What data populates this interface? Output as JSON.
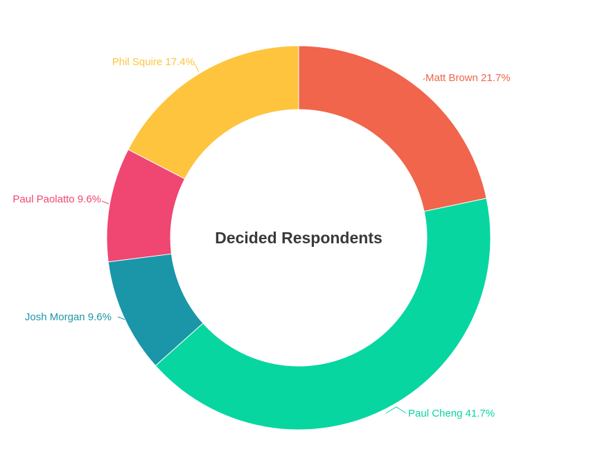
{
  "chart_data": {
    "type": "pie",
    "title": "Decided Respondents",
    "donut": true,
    "slices": [
      {
        "label": "Matt Brown",
        "value": 21.7,
        "display": "21.7%",
        "color": "#f0654b"
      },
      {
        "label": "Paul Cheng",
        "value": 41.7,
        "display": "41.7%",
        "color": "#08d6a0"
      },
      {
        "label": "Josh Morgan",
        "value": 9.6,
        "display": "9.6%",
        "color": "#1b96a8"
      },
      {
        "label": "Paul Paolatto",
        "value": 9.6,
        "display": "9.6%",
        "color": "#ef4672"
      },
      {
        "label": "Phil Squire",
        "value": 17.4,
        "display": "17.4%",
        "color": "#fec43e"
      }
    ]
  }
}
